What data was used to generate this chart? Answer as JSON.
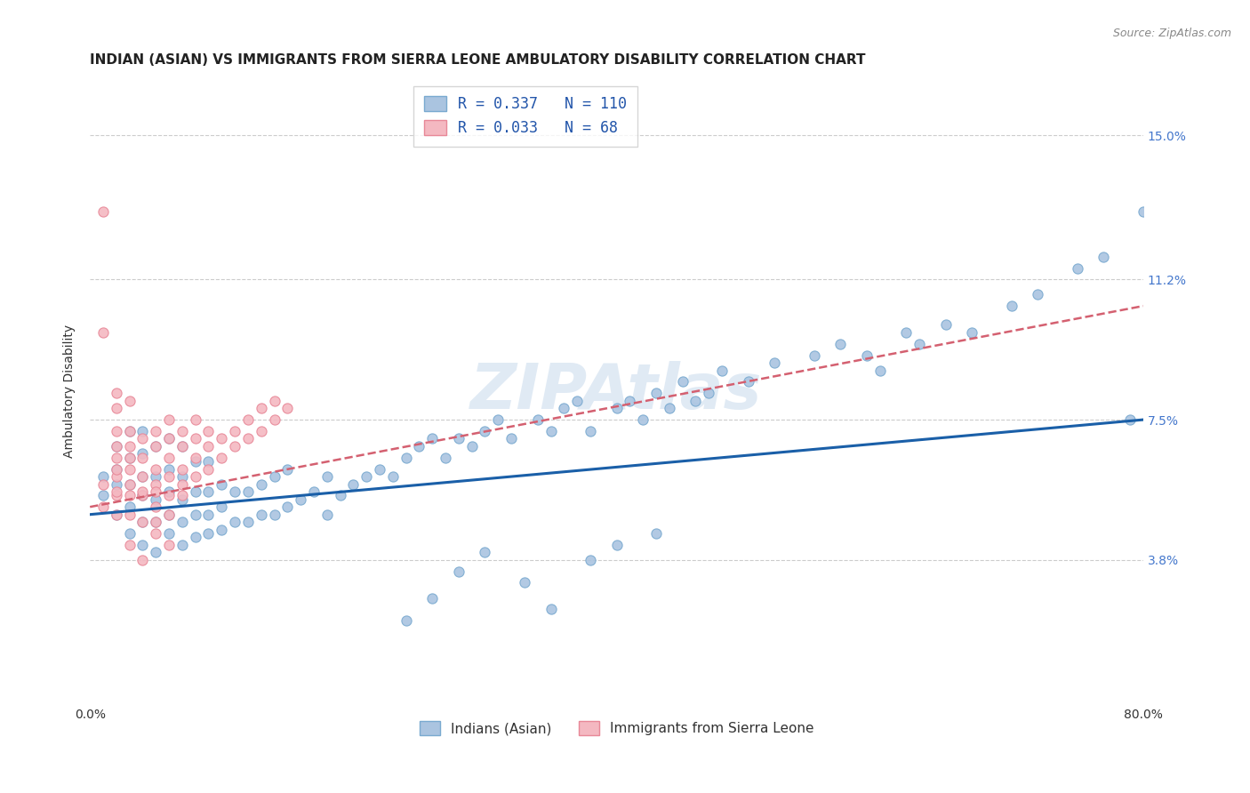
{
  "title": "INDIAN (ASIAN) VS IMMIGRANTS FROM SIERRA LEONE AMBULATORY DISABILITY CORRELATION CHART",
  "source": "Source: ZipAtlas.com",
  "ylabel": "Ambulatory Disability",
  "xlim": [
    0.0,
    0.8
  ],
  "ylim": [
    0.0,
    0.165
  ],
  "ytick_positions": [
    0.038,
    0.075,
    0.112,
    0.15
  ],
  "ytick_labels": [
    "3.8%",
    "7.5%",
    "11.2%",
    "15.0%"
  ],
  "grid_color": "#cccccc",
  "background_color": "#ffffff",
  "blue_scatter_color": "#aac4e0",
  "blue_edge_color": "#7aaad0",
  "pink_scatter_color": "#f4b8c1",
  "pink_edge_color": "#e88898",
  "trend_blue_color": "#1a5fa8",
  "trend_pink_color": "#d46070",
  "R_blue": 0.337,
  "N_blue": 110,
  "R_pink": 0.033,
  "N_pink": 68,
  "legend_label_blue": "Indians (Asian)",
  "legend_label_pink": "Immigrants from Sierra Leone",
  "watermark": "ZIPAtlas",
  "title_fontsize": 11,
  "tick_fontsize": 10,
  "blue_scatter_x": [
    0.01,
    0.01,
    0.02,
    0.02,
    0.02,
    0.02,
    0.03,
    0.03,
    0.03,
    0.03,
    0.03,
    0.04,
    0.04,
    0.04,
    0.04,
    0.04,
    0.04,
    0.05,
    0.05,
    0.05,
    0.05,
    0.05,
    0.06,
    0.06,
    0.06,
    0.06,
    0.06,
    0.07,
    0.07,
    0.07,
    0.07,
    0.07,
    0.08,
    0.08,
    0.08,
    0.08,
    0.09,
    0.09,
    0.09,
    0.09,
    0.1,
    0.1,
    0.1,
    0.11,
    0.11,
    0.12,
    0.12,
    0.13,
    0.13,
    0.14,
    0.14,
    0.15,
    0.15,
    0.16,
    0.17,
    0.18,
    0.18,
    0.19,
    0.2,
    0.21,
    0.22,
    0.23,
    0.24,
    0.25,
    0.26,
    0.27,
    0.28,
    0.29,
    0.3,
    0.31,
    0.32,
    0.34,
    0.35,
    0.36,
    0.37,
    0.38,
    0.4,
    0.41,
    0.42,
    0.43,
    0.44,
    0.45,
    0.46,
    0.47,
    0.48,
    0.5,
    0.52,
    0.55,
    0.57,
    0.59,
    0.6,
    0.62,
    0.63,
    0.65,
    0.67,
    0.7,
    0.72,
    0.75,
    0.77,
    0.79,
    0.8,
    0.3,
    0.33,
    0.35,
    0.38,
    0.4,
    0.28,
    0.26,
    0.24,
    0.43
  ],
  "blue_scatter_y": [
    0.06,
    0.055,
    0.05,
    0.058,
    0.062,
    0.068,
    0.045,
    0.052,
    0.058,
    0.065,
    0.072,
    0.042,
    0.048,
    0.055,
    0.06,
    0.066,
    0.072,
    0.04,
    0.048,
    0.054,
    0.06,
    0.068,
    0.045,
    0.05,
    0.056,
    0.062,
    0.07,
    0.042,
    0.048,
    0.054,
    0.06,
    0.068,
    0.044,
    0.05,
    0.056,
    0.064,
    0.045,
    0.05,
    0.056,
    0.064,
    0.046,
    0.052,
    0.058,
    0.048,
    0.056,
    0.048,
    0.056,
    0.05,
    0.058,
    0.05,
    0.06,
    0.052,
    0.062,
    0.054,
    0.056,
    0.05,
    0.06,
    0.055,
    0.058,
    0.06,
    0.062,
    0.06,
    0.065,
    0.068,
    0.07,
    0.065,
    0.07,
    0.068,
    0.072,
    0.075,
    0.07,
    0.075,
    0.072,
    0.078,
    0.08,
    0.072,
    0.078,
    0.08,
    0.075,
    0.082,
    0.078,
    0.085,
    0.08,
    0.082,
    0.088,
    0.085,
    0.09,
    0.092,
    0.095,
    0.092,
    0.088,
    0.098,
    0.095,
    0.1,
    0.098,
    0.105,
    0.108,
    0.115,
    0.118,
    0.075,
    0.13,
    0.04,
    0.032,
    0.025,
    0.038,
    0.042,
    0.035,
    0.028,
    0.022,
    0.045
  ],
  "pink_scatter_x": [
    0.01,
    0.01,
    0.01,
    0.02,
    0.02,
    0.02,
    0.02,
    0.02,
    0.02,
    0.02,
    0.02,
    0.03,
    0.03,
    0.03,
    0.03,
    0.03,
    0.03,
    0.03,
    0.04,
    0.04,
    0.04,
    0.04,
    0.04,
    0.04,
    0.05,
    0.05,
    0.05,
    0.05,
    0.05,
    0.05,
    0.05,
    0.06,
    0.06,
    0.06,
    0.06,
    0.06,
    0.06,
    0.07,
    0.07,
    0.07,
    0.07,
    0.07,
    0.08,
    0.08,
    0.08,
    0.08,
    0.09,
    0.09,
    0.09,
    0.1,
    0.1,
    0.11,
    0.11,
    0.12,
    0.12,
    0.13,
    0.13,
    0.14,
    0.14,
    0.15,
    0.01,
    0.02,
    0.03,
    0.04,
    0.05,
    0.06,
    0.02,
    0.03
  ],
  "pink_scatter_y": [
    0.13,
    0.058,
    0.052,
    0.065,
    0.06,
    0.055,
    0.068,
    0.072,
    0.05,
    0.056,
    0.062,
    0.058,
    0.062,
    0.055,
    0.065,
    0.068,
    0.072,
    0.05,
    0.055,
    0.06,
    0.065,
    0.07,
    0.056,
    0.048,
    0.052,
    0.058,
    0.062,
    0.068,
    0.072,
    0.056,
    0.048,
    0.055,
    0.06,
    0.065,
    0.07,
    0.075,
    0.05,
    0.058,
    0.062,
    0.068,
    0.072,
    0.055,
    0.06,
    0.065,
    0.07,
    0.075,
    0.062,
    0.068,
    0.072,
    0.065,
    0.07,
    0.068,
    0.072,
    0.07,
    0.075,
    0.072,
    0.078,
    0.075,
    0.08,
    0.078,
    0.098,
    0.082,
    0.042,
    0.038,
    0.045,
    0.042,
    0.078,
    0.08
  ]
}
